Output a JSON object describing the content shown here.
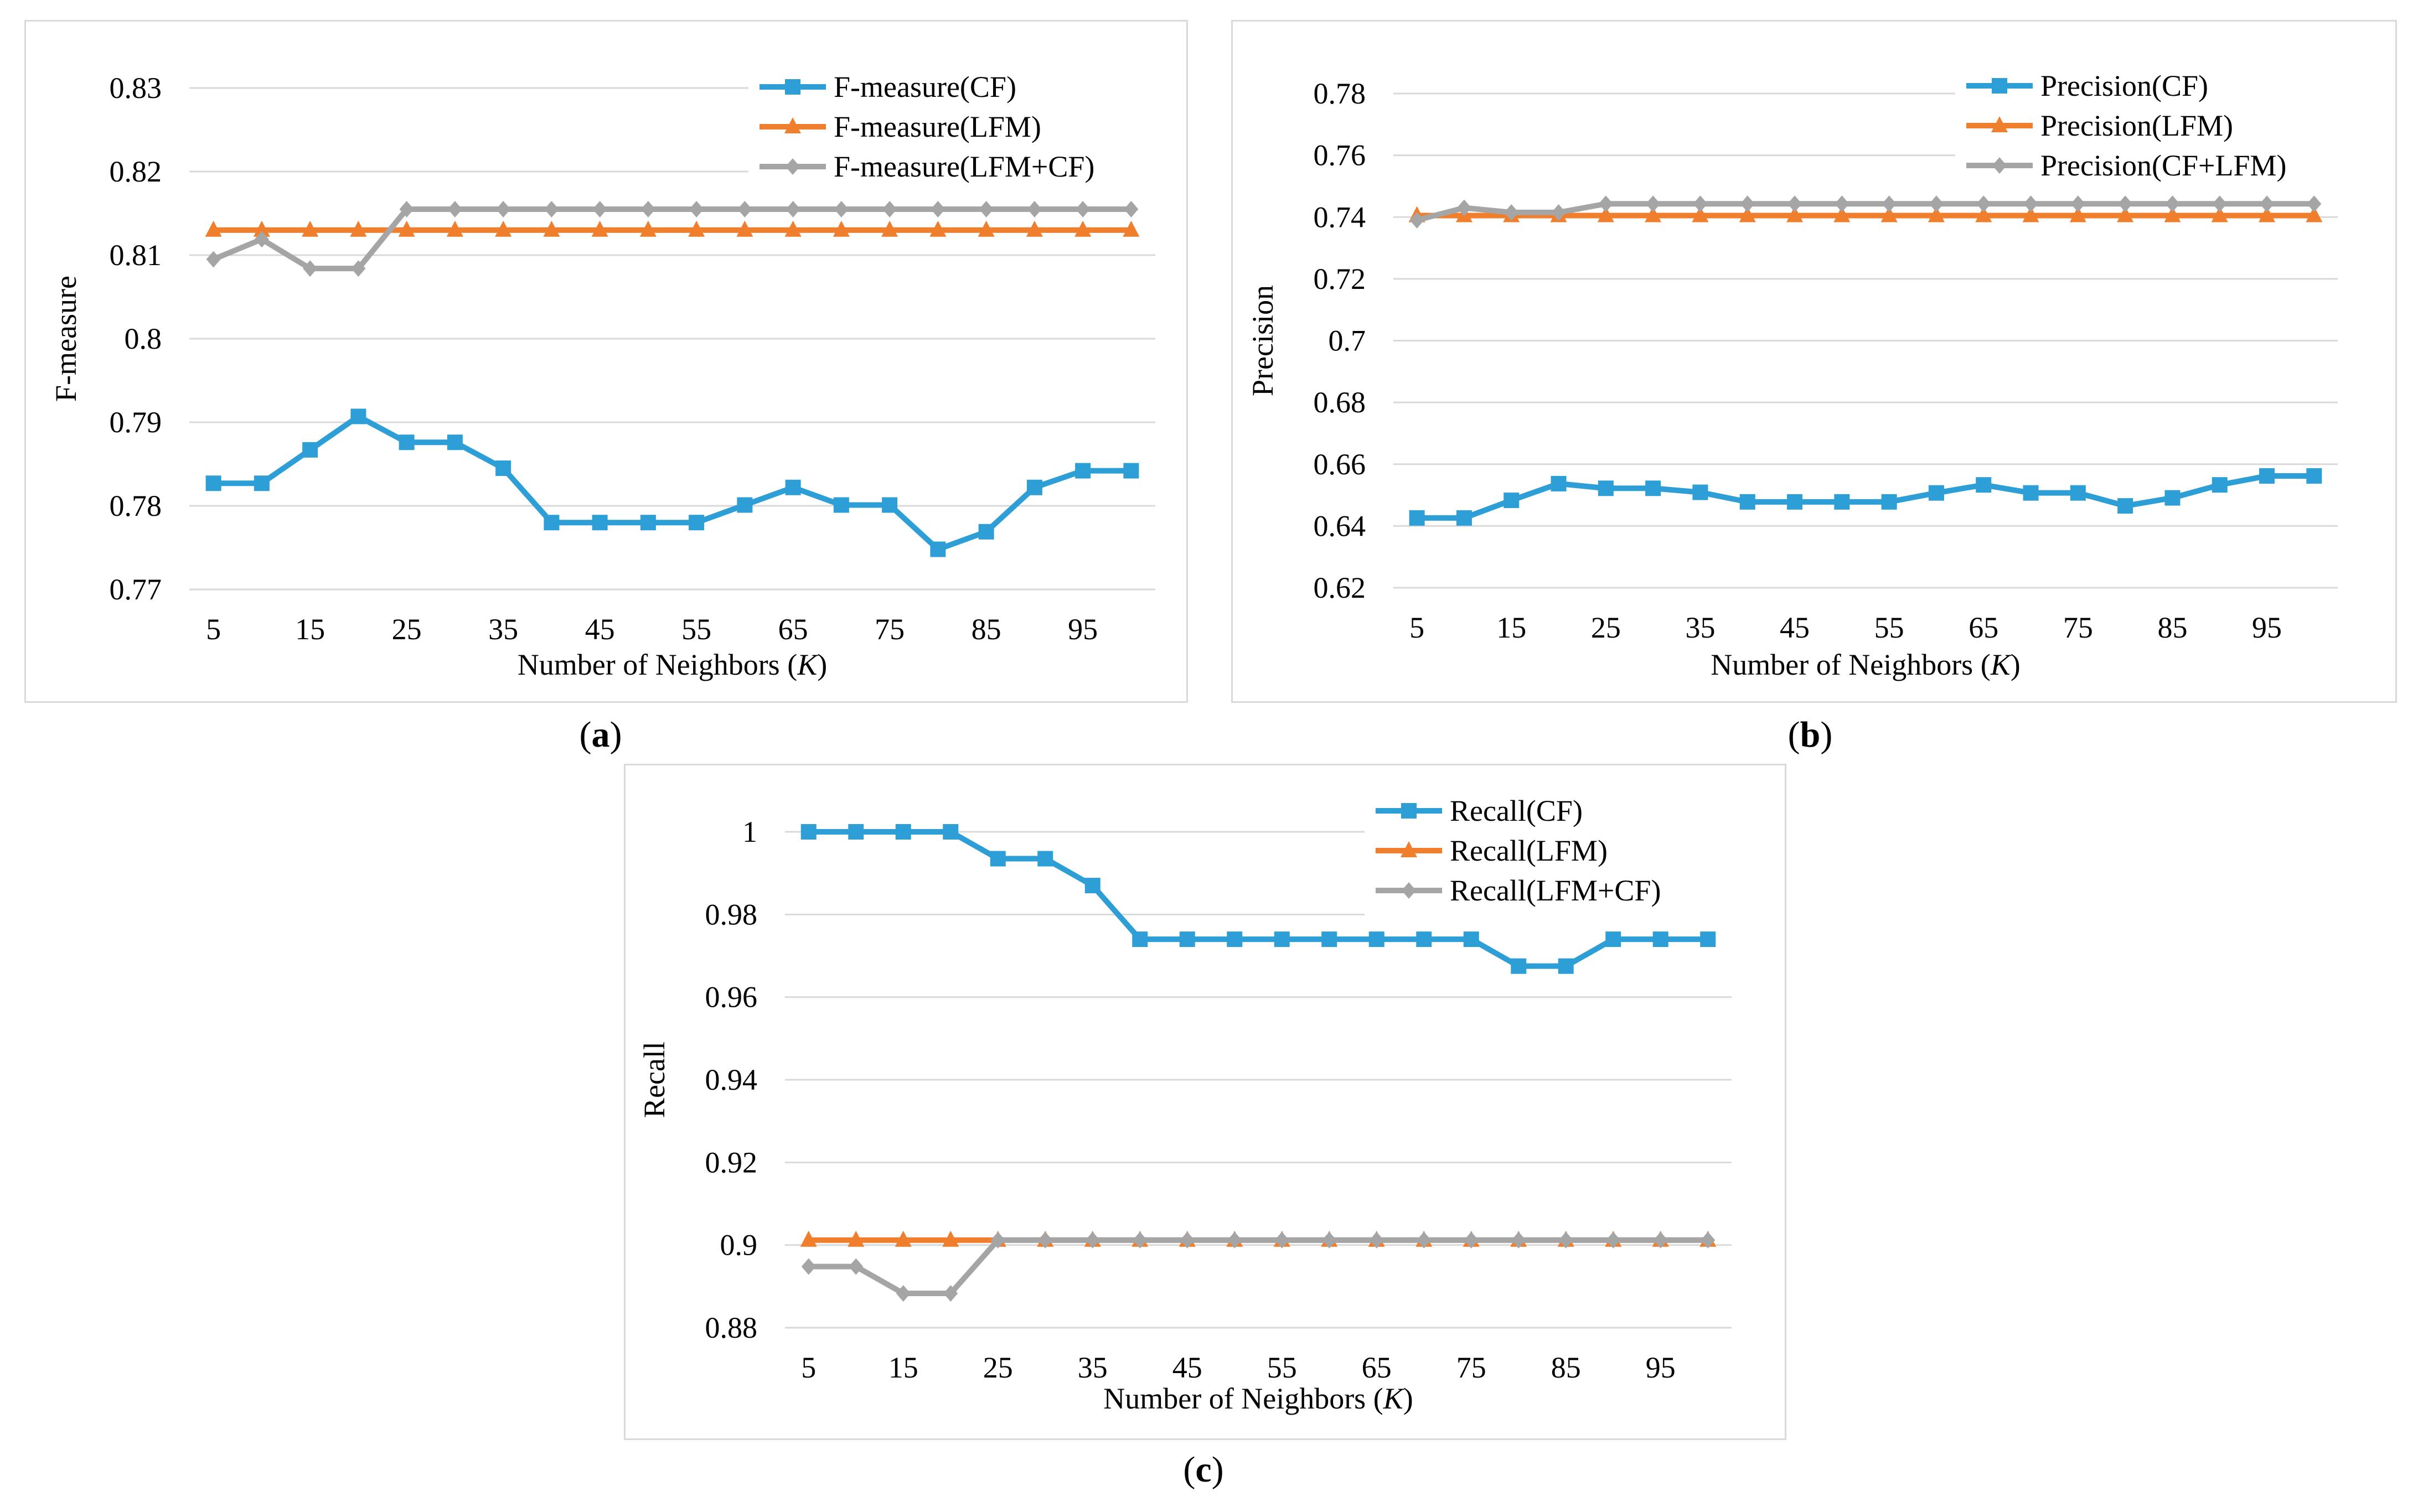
{
  "colors": {
    "cf": "#2e9fd6",
    "lfm": "#f07f2d",
    "combo": "#a5a5a5",
    "grid": "#d9d9d9"
  },
  "chart_data": [
    {
      "id": "a",
      "type": "line",
      "caption_letter": "a",
      "ylabel": "F-measure",
      "xlabel_prefix": "Number of Neighbors (",
      "xlabel_var": "K",
      "xlabel_suffix": ")",
      "ylim": [
        0.77,
        0.83
      ],
      "yticks": [
        0.77,
        0.78,
        0.79,
        0.8,
        0.81,
        0.82,
        0.83
      ],
      "ytick_labels": [
        "0.77",
        "0.78",
        "0.79",
        "0.8",
        "0.81",
        "0.82",
        "0.83"
      ],
      "xticks": [
        "5",
        "15",
        "25",
        "35",
        "45",
        "55",
        "65",
        "75",
        "85",
        "95"
      ],
      "x": [
        5,
        10,
        15,
        20,
        25,
        30,
        35,
        40,
        45,
        50,
        55,
        60,
        65,
        70,
        75,
        80,
        85,
        90,
        95,
        100
      ],
      "series": [
        {
          "name": "F-measure(CF)",
          "marker": "square",
          "color": "#2e9fd6",
          "values": [
            0.7827,
            0.7827,
            0.7867,
            0.7907,
            0.7876,
            0.7876,
            0.7845,
            0.778,
            0.778,
            0.778,
            0.778,
            0.7801,
            0.7822,
            0.7801,
            0.7801,
            0.7748,
            0.7769,
            0.7822,
            0.7842,
            0.7842
          ]
        },
        {
          "name": "F-measure(LFM)",
          "marker": "triangle",
          "color": "#f07f2d",
          "values": [
            0.813,
            0.813,
            0.813,
            0.813,
            0.813,
            0.813,
            0.813,
            0.813,
            0.813,
            0.813,
            0.813,
            0.813,
            0.813,
            0.813,
            0.813,
            0.813,
            0.813,
            0.813,
            0.813,
            0.813
          ]
        },
        {
          "name": "F-measure(LFM+CF)",
          "marker": "diamond",
          "color": "#a5a5a5",
          "values": [
            0.8095,
            0.8119,
            0.8084,
            0.8084,
            0.8155,
            0.8155,
            0.8155,
            0.8155,
            0.8155,
            0.8155,
            0.8155,
            0.8155,
            0.8155,
            0.8155,
            0.8155,
            0.8155,
            0.8155,
            0.8155,
            0.8155,
            0.8155
          ]
        }
      ]
    },
    {
      "id": "b",
      "type": "line",
      "caption_letter": "b",
      "ylabel": "Precision",
      "xlabel_prefix": "Number of Neighbors (",
      "xlabel_var": "K",
      "xlabel_suffix": ")",
      "ylim": [
        0.62,
        0.78
      ],
      "yticks": [
        0.62,
        0.64,
        0.66,
        0.68,
        0.7,
        0.72,
        0.74,
        0.76,
        0.78
      ],
      "ytick_labels": [
        "0.62",
        "0.64",
        "0.66",
        "0.68",
        "0.7",
        "0.72",
        "0.74",
        "0.76",
        "0.78"
      ],
      "xticks": [
        "5",
        "15",
        "25",
        "35",
        "45",
        "55",
        "65",
        "75",
        "85",
        "95"
      ],
      "x": [
        5,
        10,
        15,
        20,
        25,
        30,
        35,
        40,
        45,
        50,
        55,
        60,
        65,
        70,
        75,
        80,
        85,
        90,
        95,
        100
      ],
      "series": [
        {
          "name": "Precision(CF)",
          "marker": "square",
          "color": "#2e9fd6",
          "values": [
            0.6426,
            0.6426,
            0.6483,
            0.6537,
            0.6522,
            0.6522,
            0.6509,
            0.6478,
            0.6478,
            0.6478,
            0.6478,
            0.6507,
            0.6533,
            0.6507,
            0.6507,
            0.6465,
            0.6491,
            0.6533,
            0.6562,
            0.6562
          ]
        },
        {
          "name": "Precision(LFM)",
          "marker": "triangle",
          "color": "#f07f2d",
          "values": [
            0.7405,
            0.7405,
            0.7405,
            0.7405,
            0.7405,
            0.7405,
            0.7405,
            0.7405,
            0.7405,
            0.7405,
            0.7405,
            0.7405,
            0.7405,
            0.7405,
            0.7405,
            0.7405,
            0.7405,
            0.7405,
            0.7405,
            0.7405
          ]
        },
        {
          "name": "Precision(CF+LFM)",
          "marker": "diamond",
          "color": "#a5a5a5",
          "values": [
            0.739,
            0.743,
            0.7415,
            0.7415,
            0.7443,
            0.7443,
            0.7443,
            0.7443,
            0.7443,
            0.7443,
            0.7443,
            0.7443,
            0.7443,
            0.7443,
            0.7443,
            0.7443,
            0.7443,
            0.7443,
            0.7443,
            0.7443
          ]
        }
      ]
    },
    {
      "id": "c",
      "type": "line",
      "caption_letter": "c",
      "ylabel": "Recall",
      "xlabel_prefix": "Number of Neighbors (",
      "xlabel_var": "K",
      "xlabel_suffix": ")",
      "ylim": [
        0.88,
        1.0
      ],
      "yticks": [
        0.88,
        0.9,
        0.92,
        0.94,
        0.96,
        0.98,
        1.0
      ],
      "ytick_labels": [
        "0.88",
        "0.9",
        "0.92",
        "0.94",
        "0.96",
        "0.98",
        "1"
      ],
      "xticks": [
        "5",
        "15",
        "25",
        "35",
        "45",
        "55",
        "65",
        "75",
        "85",
        "95"
      ],
      "x": [
        5,
        10,
        15,
        20,
        25,
        30,
        35,
        40,
        45,
        50,
        55,
        60,
        65,
        70,
        75,
        80,
        85,
        90,
        95,
        100
      ],
      "series": [
        {
          "name": "Recall(CF)",
          "marker": "square",
          "color": "#2e9fd6",
          "values": [
            1.0,
            1.0,
            1.0,
            1.0,
            0.9935,
            0.9935,
            0.987,
            0.974,
            0.974,
            0.974,
            0.974,
            0.974,
            0.974,
            0.974,
            0.974,
            0.9675,
            0.9675,
            0.974,
            0.974,
            0.974
          ]
        },
        {
          "name": "Recall(LFM)",
          "marker": "triangle",
          "color": "#f07f2d",
          "values": [
            0.9012,
            0.9012,
            0.9012,
            0.9012,
            0.9012,
            0.9012,
            0.9012,
            0.9012,
            0.9012,
            0.9012,
            0.9012,
            0.9012,
            0.9012,
            0.9012,
            0.9012,
            0.9012,
            0.9012,
            0.9012,
            0.9012,
            0.9012
          ]
        },
        {
          "name": "Recall(LFM+CF)",
          "marker": "diamond",
          "color": "#a5a5a5",
          "values": [
            0.8948,
            0.8948,
            0.8883,
            0.8883,
            0.9012,
            0.9012,
            0.9012,
            0.9012,
            0.9012,
            0.9012,
            0.9012,
            0.9012,
            0.9012,
            0.9012,
            0.9012,
            0.9012,
            0.9012,
            0.9012,
            0.9012,
            0.9012
          ]
        }
      ]
    }
  ]
}
